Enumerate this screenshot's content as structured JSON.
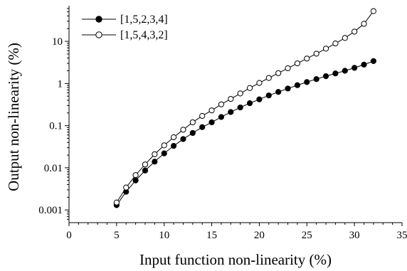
{
  "chart_data": {
    "type": "scatter",
    "title": "",
    "xlabel": "Input function non-linearity (%)",
    "ylabel": "Output non-linearity (%)",
    "xlim": [
      0,
      35
    ],
    "ylim": [
      0.0005,
      70
    ],
    "yscale": "log",
    "grid": false,
    "legend_position": "top-left",
    "x_ticks": [
      {
        "value": 0,
        "label": "0"
      },
      {
        "value": 5,
        "label": "5"
      },
      {
        "value": 10,
        "label": "10"
      },
      {
        "value": 15,
        "label": "15"
      },
      {
        "value": 20,
        "label": "20"
      },
      {
        "value": 25,
        "label": "25"
      },
      {
        "value": 30,
        "label": "30"
      },
      {
        "value": 35,
        "label": "35"
      }
    ],
    "y_ticks": [
      {
        "value": 0.001,
        "label": "0.001"
      },
      {
        "value": 0.01,
        "label": "0.01"
      },
      {
        "value": 0.1,
        "label": "0.1"
      },
      {
        "value": 1,
        "label": "1"
      },
      {
        "value": 10,
        "label": "10"
      }
    ],
    "x": [
      5,
      6,
      7,
      8,
      9,
      10,
      11,
      12,
      13,
      14,
      15,
      16,
      17,
      18,
      19,
      20,
      21,
      22,
      23,
      24,
      25,
      26,
      27,
      28,
      29,
      30,
      31,
      32
    ],
    "series": [
      {
        "name": "[1,5,2,3,4]",
        "marker": "filled-circle",
        "color": "#000000",
        "values": [
          0.0013,
          0.0027,
          0.005,
          0.0086,
          0.014,
          0.022,
          0.033,
          0.048,
          0.067,
          0.092,
          0.12,
          0.16,
          0.21,
          0.27,
          0.34,
          0.42,
          0.52,
          0.63,
          0.76,
          0.91,
          1.08,
          1.27,
          1.49,
          1.73,
          2.0,
          2.35,
          2.8,
          3.4
        ]
      },
      {
        "name": "[1,5,4,3,2]",
        "marker": "open-circle",
        "color": "#000000",
        "values": [
          0.0015,
          0.0034,
          0.0067,
          0.012,
          0.021,
          0.034,
          0.053,
          0.08,
          0.12,
          0.17,
          0.23,
          0.32,
          0.43,
          0.58,
          0.78,
          1.03,
          1.35,
          1.76,
          2.3,
          3.0,
          3.9,
          5.1,
          6.7,
          8.9,
          12.0,
          17.0,
          26.0,
          52.0
        ]
      }
    ]
  }
}
